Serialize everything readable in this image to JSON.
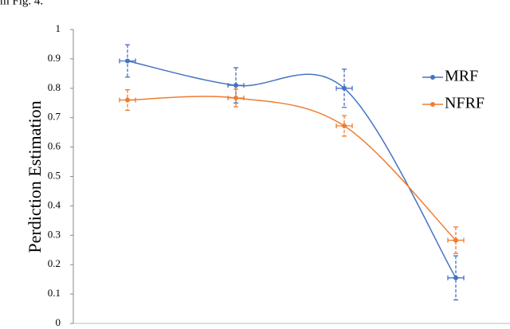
{
  "header_fragment": "m Fig. 4.",
  "chart_data": {
    "type": "line",
    "y_label": "Perdiction Estimation",
    "categories": [
      null,
      null,
      null,
      null
    ],
    "series": [
      {
        "name": "MRF",
        "color": "#4472c4",
        "values": [
          0.893,
          0.81,
          0.8,
          0.155
        ],
        "errors": [
          0.055,
          0.06,
          0.065,
          0.075
        ]
      },
      {
        "name": "NFRF",
        "color": "#ed7d31",
        "values": [
          0.76,
          0.767,
          0.672,
          0.283
        ],
        "errors": [
          0.035,
          0.03,
          0.035,
          0.045
        ]
      }
    ],
    "ylim": [
      0,
      1
    ],
    "yticks": [
      0,
      0.1,
      0.2,
      0.3,
      0.4,
      0.5,
      0.6,
      0.7,
      0.8,
      0.9,
      1
    ],
    "grid": false,
    "legend": "right",
    "smooth": true
  }
}
